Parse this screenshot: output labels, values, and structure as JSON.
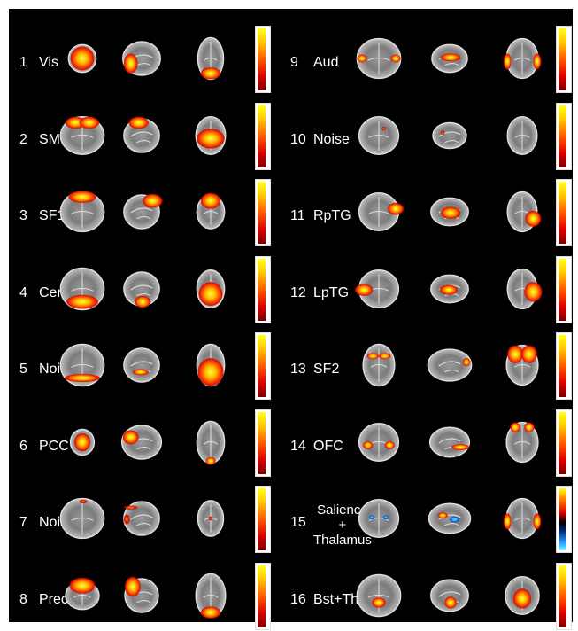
{
  "panels": [
    {
      "number": "1",
      "label": "Vis"
    },
    {
      "number": "2",
      "label": "SM"
    },
    {
      "number": "3",
      "label": "SF1"
    },
    {
      "number": "4",
      "label": "Cer"
    },
    {
      "number": "5",
      "label": "Noise"
    },
    {
      "number": "6",
      "label": "PCC"
    },
    {
      "number": "7",
      "label": "Noise"
    },
    {
      "number": "8",
      "label": "Prec"
    },
    {
      "number": "9",
      "label": "Aud"
    },
    {
      "number": "10",
      "label": "Noise"
    },
    {
      "number": "11",
      "label": "RpTG"
    },
    {
      "number": "12",
      "label": "LpTG"
    },
    {
      "number": "13",
      "label": "SF2"
    },
    {
      "number": "14",
      "label": "OFC"
    },
    {
      "number": "15",
      "label": "Salience\n+\nThalamus"
    },
    {
      "number": "16",
      "label": "Bst+Tha"
    }
  ],
  "colors": {
    "background": "#000000",
    "text": "#ffffff",
    "hot_high": "#ffff22",
    "hot_low": "#7a0000",
    "cold": "#2aa0ff"
  }
}
